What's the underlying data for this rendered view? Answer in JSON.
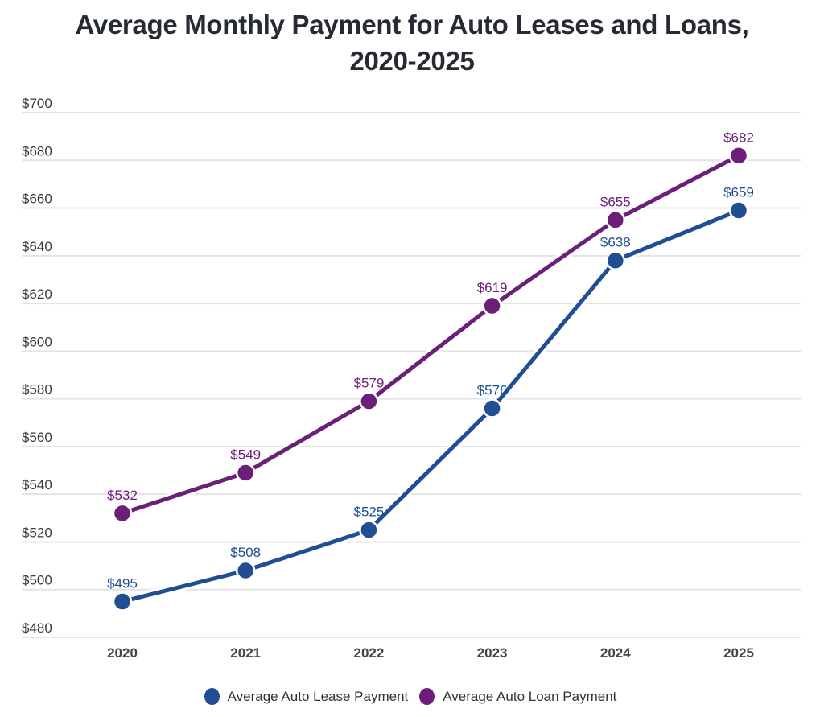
{
  "chart_data": {
    "type": "line",
    "title": "Average Monthly Payment for Auto Leases and Loans, 2020-2025",
    "title_lines": [
      "Average Monthly Payment for Auto Leases and Loans,",
      "2020-2025"
    ],
    "xlabel": "",
    "ylabel": "",
    "categories": [
      "2020",
      "2021",
      "2022",
      "2023",
      "2024",
      "2025"
    ],
    "ylim": [
      480,
      700
    ],
    "yticks": [
      480,
      500,
      520,
      540,
      560,
      580,
      600,
      620,
      640,
      660,
      680,
      700
    ],
    "ytick_labels": [
      "$480",
      "$500",
      "$520",
      "$540",
      "$560",
      "$580",
      "$600",
      "$620",
      "$640",
      "$660",
      "$680",
      "$700"
    ],
    "grid": true,
    "legend_position": "bottom",
    "series": [
      {
        "name": "Average Auto Lease Payment",
        "color": "#1f4e94",
        "values": [
          495,
          508,
          525,
          576,
          638,
          659
        ],
        "labels": [
          "$495",
          "$508",
          "$525",
          "$576",
          "$638",
          "$659"
        ]
      },
      {
        "name": "Average Auto Loan Payment",
        "color": "#6b1f78",
        "values": [
          532,
          549,
          579,
          619,
          655,
          682
        ],
        "labels": [
          "$532",
          "$549",
          "$579",
          "$619",
          "$655",
          "$682"
        ]
      }
    ]
  }
}
